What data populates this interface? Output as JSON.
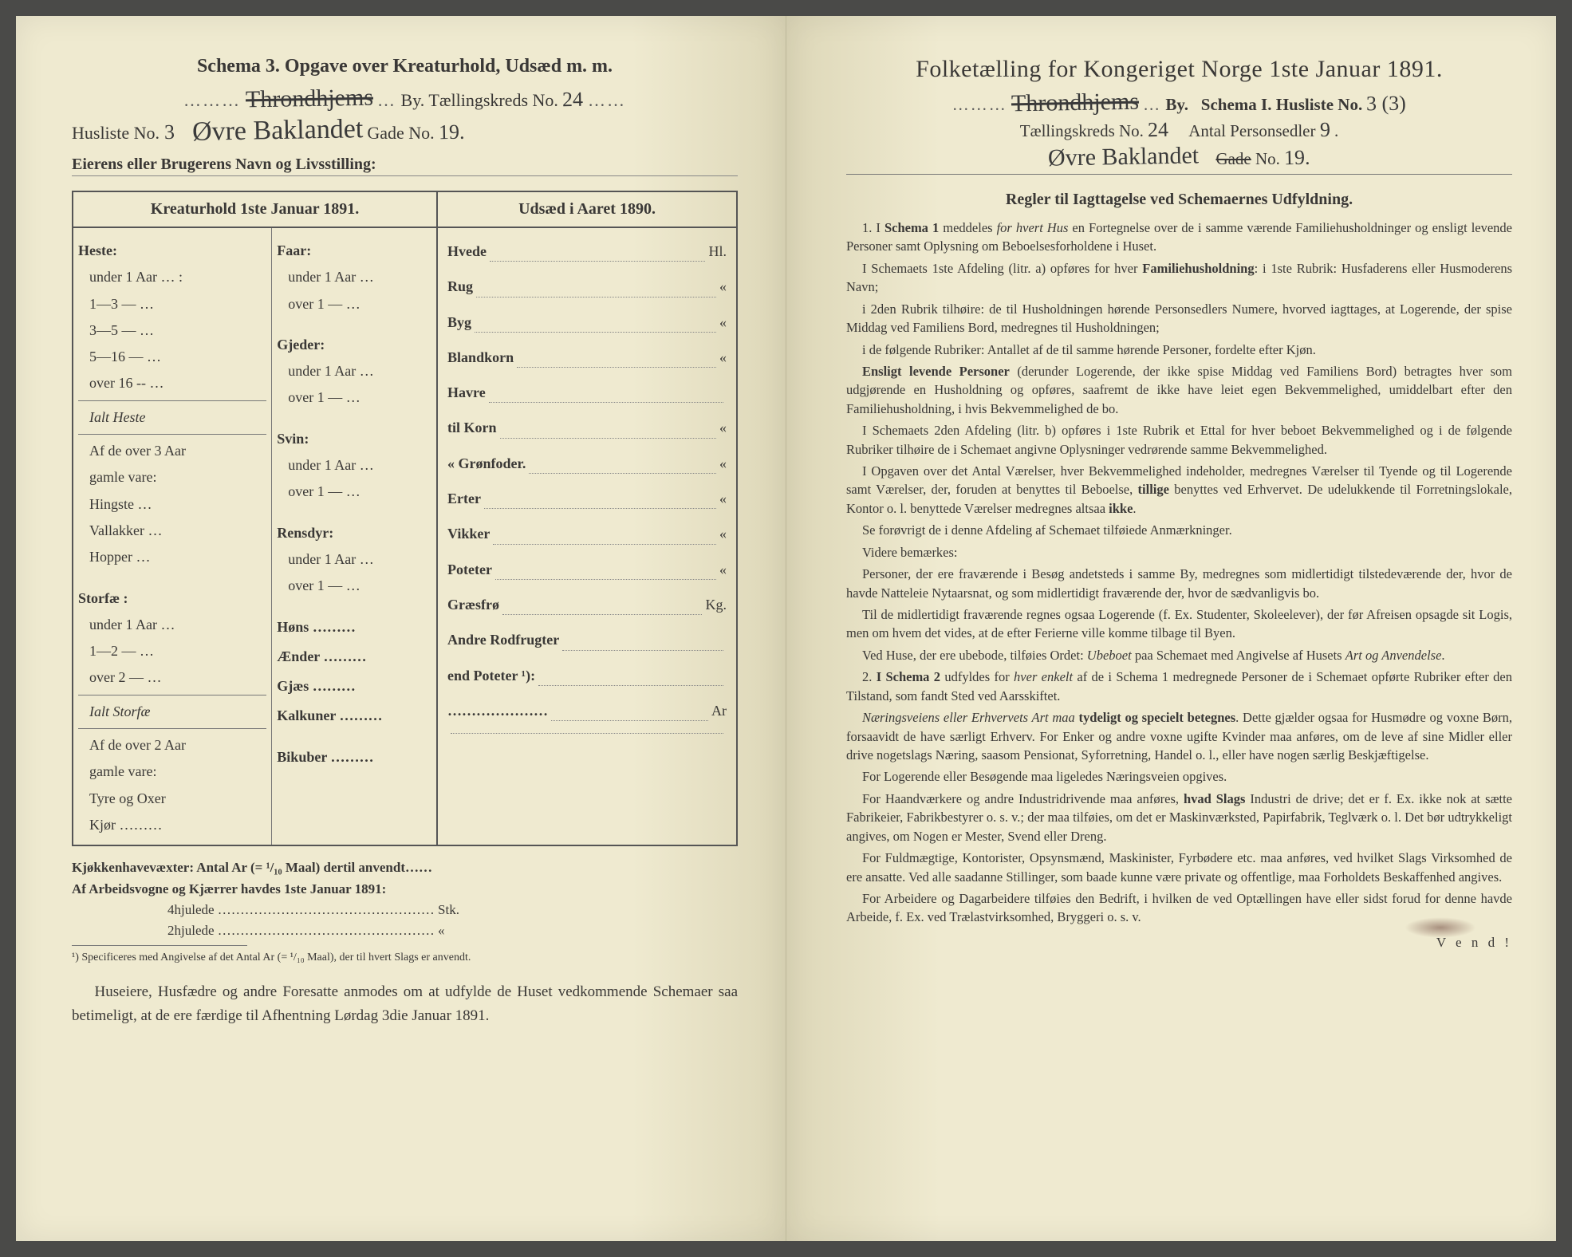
{
  "left": {
    "header": "Schema 3.  Opgave over Kreaturhold, Udsæd m. m.",
    "city_label_pre": "",
    "city_hand": "Throndhjems",
    "city_label_post": "By.  Tællingskreds No.",
    "kreds_no": "24",
    "husliste_label": "Husliste No.",
    "husliste_no": "3",
    "street_hand": "Øvre Baklandet",
    "gade_label": "Gade No.",
    "gade_no": "19.",
    "owner_label": "Eierens eller Brugerens Navn og Livsstilling:",
    "col_a_head": "Kreaturhold 1ste Januar 1891.",
    "col_b_head": "Udsæd i Aaret 1890.",
    "heste": {
      "title": "Heste:",
      "rows": [
        "under 1 Aar … :",
        "1—3   —  …",
        "3—5   —  …",
        "5—16  —  …",
        "over 16 --  …"
      ],
      "ialt": "Ialt Heste",
      "af3": "Af de over 3 Aar",
      "gamle": "gamle vare:",
      "sub": [
        "Hingste …",
        "Vallakker …",
        "Hopper …"
      ]
    },
    "storfae": {
      "title": "Storfæ :",
      "rows": [
        "under 1 Aar …",
        "1—2   —  …",
        "over 2   —  …"
      ],
      "ialt": "Ialt Storfæ",
      "af2": "Af de over 2 Aar",
      "gamle": "gamle vare:",
      "sub": [
        "Tyre og Oxer",
        "Kjør ………"
      ]
    },
    "col2": [
      {
        "title": "Faar:",
        "rows": [
          "under 1 Aar …",
          "over 1  —  …"
        ]
      },
      {
        "title": "Gjeder:",
        "rows": [
          "under 1 Aar …",
          "over 1  —  …"
        ]
      },
      {
        "title": "Svin:",
        "rows": [
          "under 1 Aar …",
          "over 1  —  …"
        ]
      },
      {
        "title": "Rensdyr:",
        "rows": [
          "under 1 Aar …",
          "over 1  —  …"
        ]
      },
      {
        "title": "",
        "singles": [
          "Høns ………",
          "Ænder ………",
          "Gjæs ………",
          "Kalkuner ………",
          "",
          "Bikuber ………"
        ]
      }
    ],
    "udsaed": [
      {
        "l": "Hvede",
        "u": "Hl."
      },
      {
        "l": "Rug",
        "u": "«"
      },
      {
        "l": "Byg",
        "u": "«"
      },
      {
        "l": "Blandkorn",
        "u": "«"
      },
      {
        "l": "Havre",
        "u": ""
      },
      {
        "l": "  til Korn",
        "u": "«"
      },
      {
        "l": "  « Grønfoder.",
        "u": "«"
      },
      {
        "l": "Erter",
        "u": "«"
      },
      {
        "l": "Vikker",
        "u": "«"
      },
      {
        "l": "Poteter",
        "u": "«"
      },
      {
        "l": "Græsfrø",
        "u": "Kg."
      },
      {
        "l": "Andre Rodfrugter",
        "u": ""
      },
      {
        "l": "  end Poteter ¹):",
        "u": ""
      },
      {
        "l": "…………………",
        "u": "Ar"
      },
      {
        "l": "",
        "u": ""
      }
    ],
    "kjokken": "Kjøkkenhavevæxter:  Antal Ar (= ¹/₁₀ Maal) dertil anvendt……",
    "arbeid": "Af Arbeidsvogne og Kjærrer havdes 1ste Januar 1891:",
    "hjul4": "4hjulede ………………………………………… Stk.",
    "hjul2": "2hjulede …………………………………………  «",
    "fn1": "¹) Specificeres med Angivelse af det Antal Ar (= ¹/₁₀ Maal), der til hvert Slags er anvendt.",
    "closing": "Huseiere, Husfædre og andre Foresatte anmodes om at udfylde de Huset vedkommende Schemaer saa betimeligt, at de ere færdige til Afhentning Lørdag 3die Januar 1891."
  },
  "right": {
    "title": "Folketælling for Kongeriget Norge 1ste Januar 1891.",
    "city_hand": "Throndhjems",
    "by_label": "By.",
    "schema_label": "Schema I.  Husliste No.",
    "husliste_no": "3 (3)",
    "kreds_label": "Tællingskreds No.",
    "kreds_no": "24",
    "antal_label": "Antal Personsedler",
    "antal_no": "9",
    "street_hand": "Øvre Baklandet",
    "gade_struck": "Gade",
    "gade_no_label": "No.",
    "gade_no": "19.",
    "rules_head": "Regler til Iagttagelse ved Schemaernes Udfyldning.",
    "paras": [
      "1.  I <b>Schema 1</b> meddeles <i>for hvert Hus</i> en Fortegnelse over de i samme værende Familiehusholdninger og ensligt levende Personer samt Oplysning om Beboelsesforholdene i Huset.",
      "I Schemaets 1ste Afdeling (litr. a) opføres for hver <b>Familiehusholdning</b>: i 1ste Rubrik: Husfaderens eller Husmoderens Navn;",
      "i 2den Rubrik tilhøire: de til Husholdningen hørende Personsedlers Numere, hvorved iagttages, at Logerende, der spise Middag ved Familiens Bord, medregnes til Husholdningen;",
      "i de følgende Rubriker: Antallet af de til samme hørende Personer, fordelte efter Kjøn.",
      "<b>Ensligt levende Personer</b> (derunder Logerende, der ikke spise Middag ved Familiens Bord) betragtes hver som udgjørende en Husholdning og opføres, saafremt de ikke have leiet egen Bekvemmelighed, umiddelbart efter den Familiehusholdning, i hvis Bekvemmelighed de bo.",
      "I Schemaets 2den Afdeling (litr. b) opføres i 1ste Rubrik et Ettal for hver beboet Bekvemmelighed og i de følgende Rubriker tilhøire de i Schemaet angivne Oplysninger vedrørende samme Bekvemmelighed.",
      "I Opgaven over det Antal Værelser, hver Bekvemmelighed indeholder, medregnes Værelser til Tyende og til Logerende samt Værelser, der, foruden at benyttes til Beboelse, <b>tillige</b> benyttes ved Erhvervet.  De udelukkende til Forretningslokale, Kontor o. l. benyttede Værelser medregnes altsaa <b>ikke</b>.",
      "Se forøvrigt de i denne Afdeling af Schemaet tilføiede Anmærkninger.",
      "Videre bemærkes:",
      "Personer, der ere fraværende i Besøg andetsteds i samme By, medregnes som midlertidigt tilstedeværende der, hvor de havde Natteleie Nytaarsnat, og som midlertidigt fraværende der, hvor de sædvanligvis bo.",
      "Til de midlertidigt fraværende regnes ogsaa Logerende (f. Ex. Studenter, Skoleelever), der før Afreisen opsagde sit Logis, men om hvem det vides, at de efter Ferierne ville komme tilbage til Byen.",
      "Ved Huse, der ere ubebode, tilføies Ordet: <i>Ubeboet</i> paa Schemaet med Angivelse af Husets <i>Art og Anvendelse</i>.",
      "2.  <b>I Schema 2</b> udfyldes for <i>hver enkelt</i> af de i Schema 1 medregnede Personer de i Schemaet opførte Rubriker efter den Tilstand, som fandt Sted ved Aarsskiftet.",
      "<i>Næringsveiens eller Erhvervets Art maa</i> <b>tydeligt og specielt betegnes</b>. Dette gjælder ogsaa for Husmødre og voxne Børn, forsaavidt de have særligt Erhverv.  For Enker og andre voxne ugifte Kvinder maa anføres, om de leve af sine Midler eller drive nogetslags Næring, saasom Pensionat, Syforretning, Handel o. l., eller have nogen særlig Beskjæftigelse.",
      "For Logerende eller Besøgende maa ligeledes Næringsveien opgives.",
      "For Haandværkere og andre Industridrivende maa anføres, <b>hvad Slags</b> Industri de drive; det er f. Ex. ikke nok at sætte Fabrikeier, Fabrikbestyrer o. s. v.; der maa tilføies, om det er Maskinværksted, Papirfabrik, Teglværk o. l.  Det bør udtrykkeligt angives, om Nogen er Mester, Svend eller Dreng.",
      "For Fuldmægtige, Kontorister, Opsynsmænd, Maskinister, Fyrbødere etc. maa anføres, ved hvilket Slags Virksomhed de ere ansatte.  Ved alle saadanne Stillinger, som baade kunne være private og offentlige, maa Forholdets Beskaffenhed angives.",
      "For Arbeidere og Dagarbeidere tilføies den Bedrift, i hvilken de ved Optællingen have eller sidst forud for denne havde Arbeide, f. Ex. ved Trælastvirksomhed, Bryggeri o. s. v."
    ],
    "vend": "V e n d !"
  },
  "colors": {
    "paper": "#efead0",
    "ink": "#3a3836",
    "hand": "#3a3a3a"
  }
}
